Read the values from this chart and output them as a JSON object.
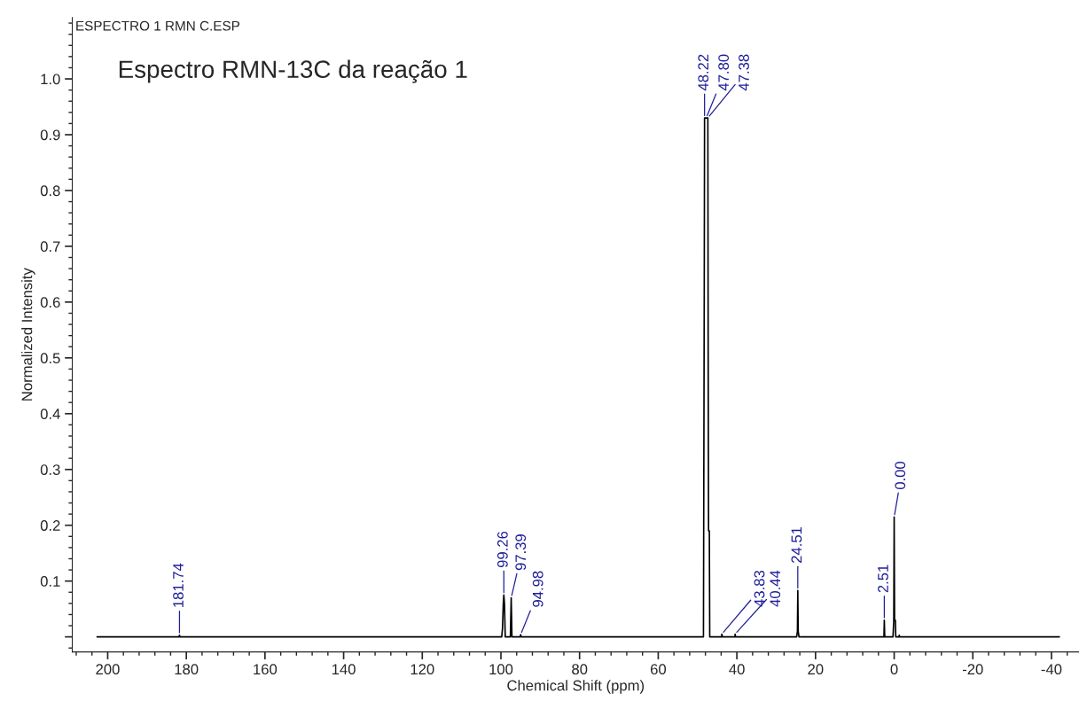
{
  "chart_data": {
    "type": "line",
    "title": "Espectro RMN-13C da reação 1",
    "subtitle": "ESPECTRO 1 RMN C.ESP",
    "xlabel": "Chemical Shift (ppm)",
    "ylabel": "Normalized Intensity",
    "xlim": [
      209,
      -47
    ],
    "ylim": [
      -0.027,
      1.11
    ],
    "xticks": [
      200,
      180,
      160,
      140,
      120,
      100,
      80,
      60,
      40,
      20,
      0,
      -20,
      -40
    ],
    "yticks": [
      {
        "value": 0,
        "label": null
      },
      0.1,
      0.2,
      0.3,
      0.4,
      0.5,
      0.6,
      0.7,
      0.8,
      0.9,
      {
        "value": 1.0,
        "label": "1.0"
      }
    ],
    "grid": false,
    "marker": "none",
    "line_style": "solid",
    "series": [
      {
        "color": "#000000",
        "x": [
          202.7,
          181.9,
          181.74,
          181.6,
          99.8,
          99.6,
          99.4,
          99.26,
          99.1,
          98.9,
          97.6,
          97.39,
          97.2,
          95.1,
          94.98,
          94.85,
          48.5,
          48.3,
          48.22,
          47.8,
          47.38,
          47.3,
          47.2,
          47.0,
          46.9,
          43.9,
          43.83,
          43.7,
          40.5,
          40.44,
          40.35,
          24.8,
          24.6,
          24.51,
          24.4,
          24.2,
          2.6,
          2.51,
          2.4,
          0.3,
          0.1,
          0.0,
          -0.1,
          -0.3,
          -0.4,
          -1.2,
          -1.3,
          -1.4,
          -42
        ],
        "values": [
          0,
          0,
          0.003,
          0,
          0,
          0.015,
          0.06,
          0.075,
          0.06,
          0,
          0,
          0.07,
          0,
          0,
          0.004,
          0,
          0,
          0.61,
          0.93,
          0.93,
          0.93,
          0.51,
          0.19,
          0.19,
          0,
          0,
          0.005,
          0,
          0,
          0.005,
          0,
          0,
          0.01,
          0.083,
          0.01,
          0,
          0,
          0.03,
          0,
          0,
          0.03,
          0.215,
          0.03,
          0.03,
          0,
          0,
          0.003,
          0,
          0
        ]
      }
    ],
    "annotations": [
      {
        "text": "181.74",
        "x": 181.74,
        "y": 0.003
      },
      {
        "text": "99.26",
        "x": 99.26,
        "y": 0.075
      },
      {
        "text": "97.39",
        "x": 97.39,
        "y": 0.07
      },
      {
        "text": "94.98",
        "x": 94.98,
        "y": 0.004
      },
      {
        "text": "48.22",
        "x": 48.22,
        "y": 0.93
      },
      {
        "text": "47.80",
        "x": 47.8,
        "y": 0.93
      },
      {
        "text": "47.38",
        "x": 47.38,
        "y": 0.93
      },
      {
        "text": "43.83",
        "x": 43.83,
        "y": 0.005
      },
      {
        "text": "40.44",
        "x": 40.44,
        "y": 0.005
      },
      {
        "text": "24.51",
        "x": 24.51,
        "y": 0.083
      },
      {
        "text": "2.51",
        "x": 2.51,
        "y": 0.03
      },
      {
        "text": "0.00",
        "x": 0.0,
        "y": 0.215
      }
    ]
  }
}
